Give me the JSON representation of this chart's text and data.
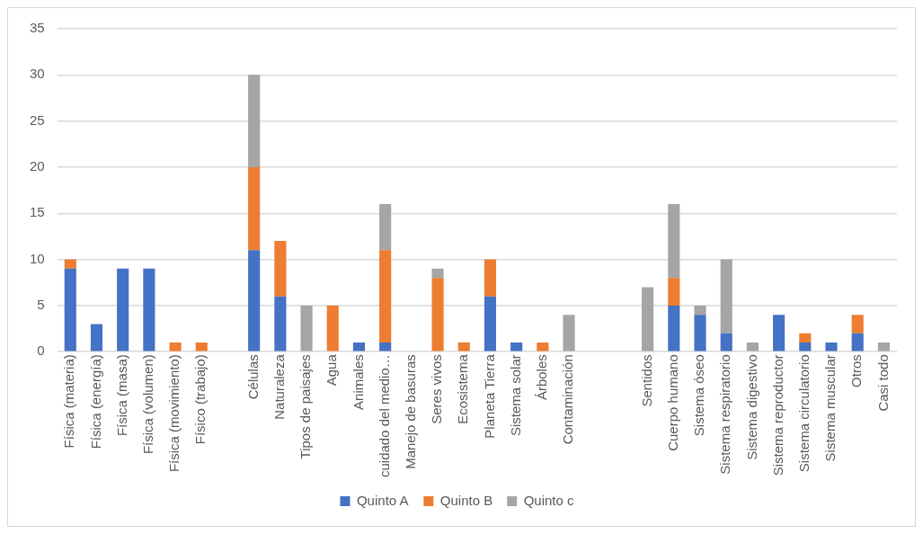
{
  "chart_data": {
    "type": "bar",
    "stacked": true,
    "legend": "bottom",
    "grid": "y",
    "categories": [
      "Física (materia)",
      "Física (energía)",
      "Física (masa)",
      "Física (volumen)",
      "Física (movimiento)",
      "Físico (trabajo)",
      null,
      "Células",
      "Naturaleza",
      "Tipos de paisajes",
      "Agua",
      "Animales",
      "cuidado del medio…",
      "Manejo de basuras",
      "Seres vivos",
      "Ecosistema",
      "Planeta Tierra",
      "Sistema solar",
      "Árboles",
      "Contaminación",
      null,
      null,
      "Sentidos",
      "Cuerpo humano",
      "Sistema óseo",
      "Sistema respiratorio",
      "Sistema digestivo",
      "Sistema reproductor",
      "Sistema circulatorio",
      "Sistema muscular",
      "Otros",
      "Casi todo"
    ],
    "series": [
      {
        "name": "Quinto A",
        "color": "#4472c4",
        "values": [
          9,
          3,
          9,
          9,
          0,
          0,
          null,
          11,
          6,
          0,
          0,
          1,
          1,
          0,
          0,
          0,
          6,
          1,
          0,
          0,
          null,
          null,
          0,
          5,
          4,
          2,
          0,
          4,
          1,
          1,
          2,
          0
        ]
      },
      {
        "name": "Quinto B",
        "color": "#ed7d31",
        "values": [
          1,
          0,
          0,
          0,
          1,
          1,
          null,
          9,
          6,
          0,
          5,
          0,
          10,
          0,
          8,
          1,
          4,
          0,
          1,
          0,
          null,
          null,
          0,
          3,
          0,
          0,
          0,
          0,
          1,
          0,
          2,
          0
        ]
      },
      {
        "name": "Quinto c",
        "color": "#a5a5a5",
        "values": [
          0,
          0,
          0,
          0,
          0,
          0,
          null,
          10,
          0,
          5,
          0,
          0,
          5,
          0,
          1,
          0,
          0,
          0,
          0,
          4,
          null,
          null,
          7,
          8,
          1,
          8,
          1,
          0,
          0,
          0,
          0,
          1
        ]
      }
    ],
    "ylim": [
      0,
      35
    ],
    "yticks": [
      0,
      5,
      10,
      15,
      20,
      25,
      30,
      35
    ]
  }
}
